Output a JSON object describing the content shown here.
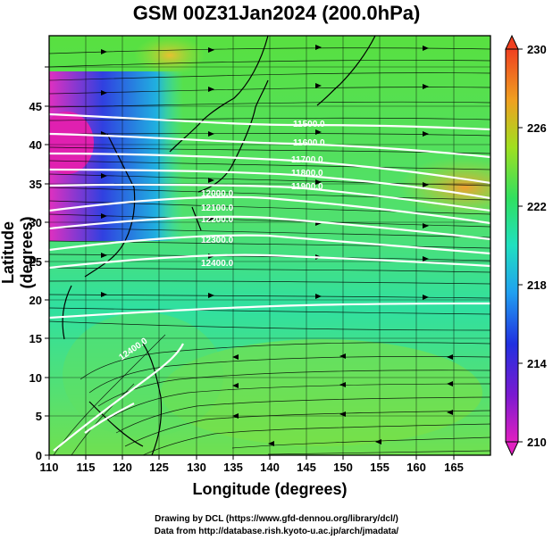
{
  "title": "GSM 00Z31Jan2024 (200.0hPa)",
  "x_axis": {
    "label": "Longitude (degrees)",
    "ticks": [
      "110",
      "115",
      "120",
      "125",
      "130",
      "135",
      "140",
      "145",
      "150",
      "155",
      "160",
      "165"
    ]
  },
  "y_axis": {
    "label": "Latitude  (degrees)",
    "ticks": [
      "0",
      "5",
      "10",
      "15",
      "20",
      "25",
      "30",
      "35",
      "40",
      "45"
    ]
  },
  "colorbar": {
    "ticks": [
      "230",
      "226",
      "222",
      "218",
      "214",
      "210"
    ]
  },
  "credits": {
    "line1": "Drawing by DCL (https://www.gfd-dennou.org/library/dcl/)",
    "line2": "Data from http://database.rish.kyoto-u.ac.jp/arch/jmadata/"
  },
  "contour_labels": [
    "11500.0",
    "11600.0",
    "11700.0",
    "11800.0",
    "11900.0",
    "12000.0",
    "12100.0",
    "12200.0",
    "12300.0",
    "12400.0",
    "12400.0"
  ],
  "chart_data": {
    "type": "map",
    "region": {
      "lon_range": [
        110,
        170
      ],
      "lat_range": [
        0,
        50
      ]
    },
    "field": "temperature (K) shaded, geopotential height contours, wind vectors",
    "colorbar_range": [
      210,
      230
    ],
    "contours": [
      11500,
      11600,
      11700,
      11800,
      11900,
      12000,
      12100,
      12200,
      12300,
      12400
    ]
  }
}
